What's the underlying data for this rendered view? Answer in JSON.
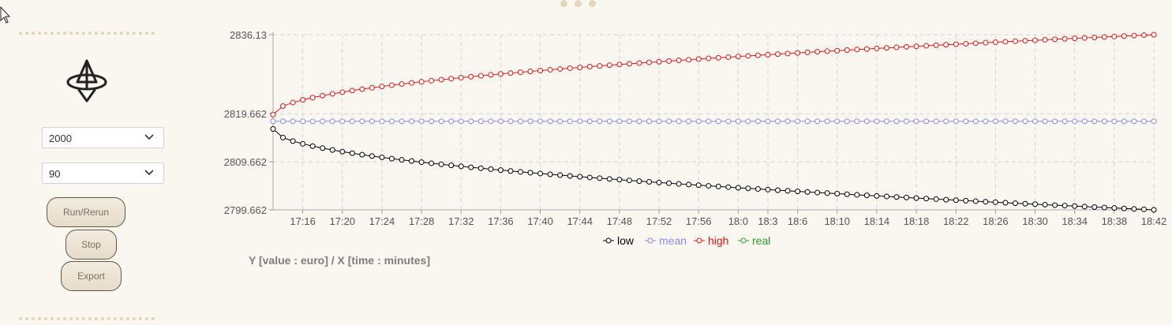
{
  "controls": {
    "select1_value": "2000",
    "select2_value": "90",
    "run_label": "Run/Rerun",
    "stop_label": "Stop",
    "export_label": "Export"
  },
  "axis_caption": "Y [value : euro] / X [time : minutes]",
  "colors": {
    "low": "#000000",
    "mean": "#8a8ae6",
    "high": "#e01414",
    "real": "#2a9a2a"
  },
  "chart_data": {
    "type": "line",
    "title": "",
    "xlabel": "",
    "ylabel": "",
    "x_start_minute": 1033,
    "x_end_minute": 1122,
    "x_ticks": [
      "17:16",
      "17:20",
      "17:24",
      "17:28",
      "17:32",
      "17:36",
      "17:40",
      "17:44",
      "17:48",
      "17:52",
      "17:56",
      "18:0",
      "18:3",
      "18:6",
      "18:10",
      "18:14",
      "18:18",
      "18:22",
      "18:26",
      "18:30",
      "18:34",
      "18:38",
      "18:42"
    ],
    "y_ticks": [
      "2799.662",
      "2809.662",
      "2819.662",
      "2836.13"
    ],
    "ylim": [
      2799.662,
      2836.13
    ],
    "grid": true,
    "legend_position": "bottom-center",
    "series": [
      {
        "name": "low",
        "model": "sqrt",
        "start": 2816.5,
        "end": 2799.662
      },
      {
        "name": "mean",
        "model": "constant",
        "value": 2818.1
      },
      {
        "name": "high",
        "model": "sqrt",
        "start": 2819.5,
        "end": 2836.13
      },
      {
        "name": "real",
        "model": "none"
      }
    ]
  }
}
